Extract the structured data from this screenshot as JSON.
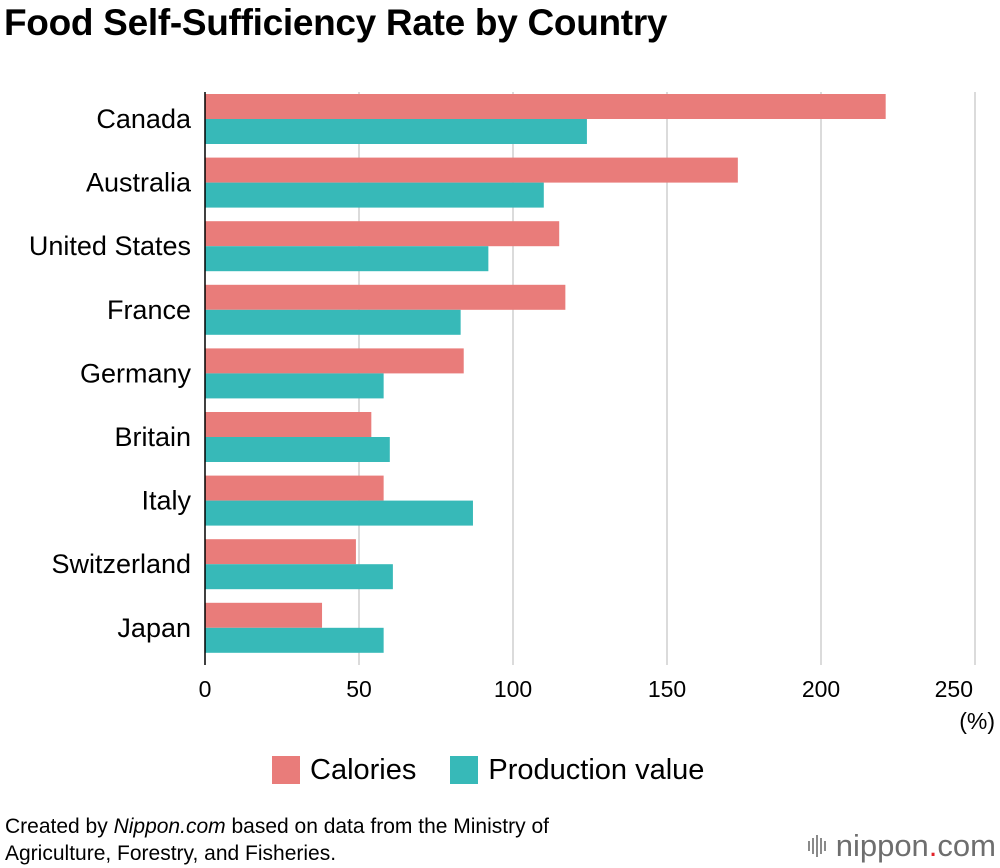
{
  "colors": {
    "calories": "#e97c7a",
    "production": "#37b9b8",
    "grid": "#cfcfcf",
    "axis": "#000000",
    "logo_dot": "#e2232a"
  },
  "chart_data": {
    "type": "bar",
    "orientation": "horizontal",
    "title": "Food Self-Sufficiency Rate by Country",
    "categories": [
      "Canada",
      "Australia",
      "United States",
      "France",
      "Germany",
      "Britain",
      "Italy",
      "Switzerland",
      "Japan"
    ],
    "series": [
      {
        "name": "Calories",
        "values": [
          221,
          173,
          115,
          117,
          84,
          54,
          58,
          49,
          38
        ]
      },
      {
        "name": "Production value",
        "values": [
          124,
          110,
          92,
          83,
          58,
          60,
          87,
          61,
          58
        ]
      }
    ],
    "xlim": [
      0,
      250
    ],
    "xticks": [
      "0",
      "50",
      "100",
      "150",
      "200",
      "250"
    ],
    "xunit": "(%)",
    "grid": true,
    "legend": "bottom-center"
  },
  "legend": {
    "calories_label": "Calories",
    "production_label": "Production value"
  },
  "footer": {
    "prefix": "Created by ",
    "site": "Nippon.com",
    "suffix": " based on data from the Ministry of",
    "line2": "Agriculture, Forestry, and Fisheries."
  },
  "logo": {
    "name": "nippon",
    "dot": ".",
    "tld": "com"
  }
}
